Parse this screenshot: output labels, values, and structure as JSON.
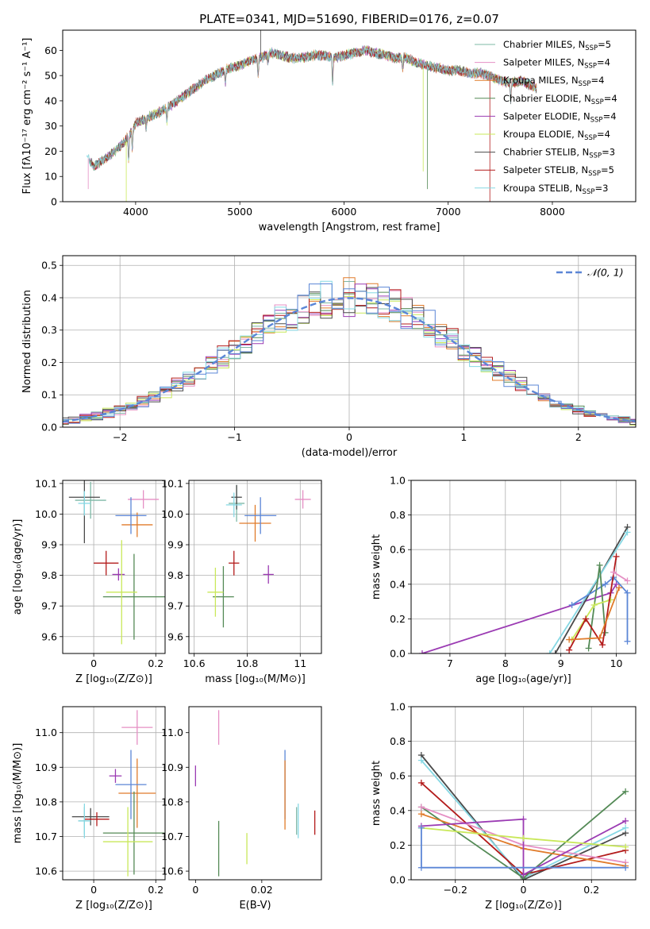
{
  "figure_title": "PLATE=0341, MJD=51690, FIBERID=0176, z=0.07",
  "colors": {
    "chabrier_miles": "#7eb8a6",
    "salpeter_miles": "#e58fc4",
    "kroupa_miles": "#e07b2a",
    "chabrier_elodie": "#548a56",
    "salpeter_elodie": "#9b3bb3",
    "kroupa_elodie": "#c9e85a",
    "chabrier_stelib": "#4a4a4a",
    "salpeter_stelib": "#b31b1b",
    "kroupa_stelib": "#86d8e4",
    "blue": "#5b86d6",
    "grid": "#b0b0b0"
  },
  "chart_data": [
    {
      "id": "spectrum",
      "type": "line",
      "title": "PLATE=0341, MJD=51690, FIBERID=0176, z=0.07",
      "xlabel": "wavelength [Angstrom, rest frame]",
      "ylabel": "Flux [fλ10⁻¹⁷ erg cm⁻² s⁻¹ A⁻¹]",
      "xlim": [
        3300,
        8800
      ],
      "ylim": [
        0,
        68
      ],
      "xticks": [
        4000,
        5000,
        6000,
        7000,
        8000
      ],
      "yticks": [
        0,
        10,
        20,
        30,
        40,
        50,
        60
      ],
      "grid": false,
      "legend_position": "top-right",
      "continuum": {
        "x": [
          3530,
          3600,
          3700,
          3800,
          3900,
          3960,
          4000,
          4100,
          4200,
          4300,
          4400,
          4500,
          4600,
          4700,
          4800,
          4900,
          5000,
          5100,
          5200,
          5300,
          5400,
          5500,
          5600,
          5700,
          5800,
          5900,
          6000,
          6100,
          6200,
          6300,
          6400,
          6500,
          6600,
          6700,
          6800,
          6900,
          7000,
          7100,
          7200,
          7300,
          7400,
          7500,
          7600,
          7700,
          7800,
          7850
        ],
        "y": [
          18,
          14,
          17,
          20,
          24,
          28,
          31,
          33,
          35,
          37,
          40,
          43,
          46,
          49,
          51,
          53,
          54,
          56,
          57,
          59,
          58,
          57,
          57,
          58,
          58,
          57,
          58,
          59,
          60,
          59,
          58,
          57,
          57,
          55,
          54,
          53,
          52,
          52,
          51,
          51,
          50,
          48,
          47,
          48,
          46,
          45
        ]
      },
      "series": [
        {
          "name": "Chabrier MILES, N",
          "n_ssp": "SSP",
          "n_value": "=5",
          "color_key": "chabrier_miles"
        },
        {
          "name": "Salpeter MILES, N",
          "n_ssp": "SSP",
          "n_value": "=4",
          "color_key": "salpeter_miles"
        },
        {
          "name": "Kroupa MILES, N",
          "n_ssp": "SSP",
          "n_value": "=4",
          "color_key": "kroupa_miles"
        },
        {
          "name": "Chabrier ELODIE, N",
          "n_ssp": "SSP",
          "n_value": "=4",
          "color_key": "chabrier_elodie"
        },
        {
          "name": "Salpeter ELODIE, N",
          "n_ssp": "SSP",
          "n_value": "=4",
          "color_key": "salpeter_elodie"
        },
        {
          "name": "Kroupa ELODIE, N",
          "n_ssp": "SSP",
          "n_value": "=4",
          "color_key": "kroupa_elodie"
        },
        {
          "name": "Chabrier STELIB, N",
          "n_ssp": "SSP",
          "n_value": "=3",
          "color_key": "chabrier_stelib"
        },
        {
          "name": "Salpeter STELIB, N",
          "n_ssp": "SSP",
          "n_value": "=5",
          "color_key": "salpeter_stelib"
        },
        {
          "name": "Kroupa STELIB, N",
          "n_ssp": "SSP",
          "n_value": "=3",
          "color_key": "kroupa_stelib"
        }
      ]
    },
    {
      "id": "residuals",
      "type": "line",
      "xlabel": "(data-model)/error",
      "ylabel": "Normed distribution",
      "xlim": [
        -2.5,
        2.5
      ],
      "ylim": [
        0,
        0.53
      ],
      "xticks": [
        -2,
        -1,
        0,
        1,
        2
      ],
      "yticks": [
        0.0,
        0.1,
        0.2,
        0.3,
        0.4,
        0.5
      ],
      "grid": true,
      "legend_position": "top-right",
      "legend_label": "𝒩(0, 1)",
      "gaussian": {
        "mu": 0,
        "sigma": 1
      }
    },
    {
      "id": "z_age",
      "type": "scatter",
      "xlabel": "Z [log₁₀(Z/Z⊙)]",
      "ylabel": "age  [log₁₀(age/yr)]",
      "xlim": [
        -0.1,
        0.23
      ],
      "ylim": [
        9.545,
        10.11
      ],
      "xticks": [
        0.0,
        0.2
      ],
      "yticks": [
        9.6,
        9.7,
        9.8,
        9.9,
        10.0,
        10.1
      ],
      "grid": true,
      "points": [
        {
          "x": -0.01,
          "y": 10.045,
          "ex": 0.05,
          "ey": 0.06,
          "color_key": "chabrier_miles"
        },
        {
          "x": 0.16,
          "y": 10.048,
          "ex": 0.05,
          "ey": 0.03,
          "color_key": "salpeter_miles"
        },
        {
          "x": 0.14,
          "y": 9.965,
          "ex": 0.05,
          "ey": 0.04,
          "color_key": "kroupa_miles"
        },
        {
          "x": 0.13,
          "y": 9.73,
          "ex": 0.1,
          "ey": 0.14,
          "color_key": "chabrier_elodie"
        },
        {
          "x": 0.08,
          "y": 9.803,
          "ex": 0.02,
          "ey": 0.02,
          "color_key": "salpeter_elodie"
        },
        {
          "x": 0.09,
          "y": 9.745,
          "ex": 0.05,
          "ey": 0.17,
          "color_key": "kroupa_elodie"
        },
        {
          "x": -0.03,
          "y": 10.055,
          "ex": 0.05,
          "ey": 0.15,
          "color_key": "chabrier_stelib"
        },
        {
          "x": 0.04,
          "y": 9.84,
          "ex": 0.04,
          "ey": 0.04,
          "color_key": "salpeter_stelib"
        },
        {
          "x": -0.03,
          "y": 10.035,
          "ex": 0.02,
          "ey": 0.04,
          "color_key": "kroupa_stelib"
        },
        {
          "x": 0.12,
          "y": 9.995,
          "ex": 0.05,
          "ey": 0.06,
          "color_key": "blue"
        }
      ]
    },
    {
      "id": "mass_age",
      "type": "scatter",
      "xlabel": "mass [log₁₀(M/M⊙)]",
      "ylabel": "",
      "xlim": [
        10.58,
        11.08
      ],
      "ylim": [
        9.545,
        10.11
      ],
      "xticks": [
        10.6,
        10.8,
        11.0
      ],
      "yticks": [
        9.6,
        9.7,
        9.8,
        9.9,
        10.0,
        10.1
      ],
      "grid": true,
      "points": [
        {
          "x": 10.76,
          "y": 10.035,
          "ex": 0.03,
          "ey": 0.06,
          "color_key": "chabrier_miles"
        },
        {
          "x": 11.01,
          "y": 10.048,
          "ex": 0.03,
          "ey": 0.03,
          "color_key": "salpeter_miles"
        },
        {
          "x": 10.83,
          "y": 9.97,
          "ex": 0.06,
          "ey": 0.06,
          "color_key": "kroupa_miles"
        },
        {
          "x": 10.71,
          "y": 9.73,
          "ex": 0.04,
          "ey": 0.1,
          "color_key": "chabrier_elodie"
        },
        {
          "x": 10.88,
          "y": 9.803,
          "ex": 0.02,
          "ey": 0.03,
          "color_key": "salpeter_elodie"
        },
        {
          "x": 10.68,
          "y": 9.745,
          "ex": 0.03,
          "ey": 0.08,
          "color_key": "kroupa_elodie"
        },
        {
          "x": 10.76,
          "y": 10.055,
          "ex": 0.02,
          "ey": 0.04,
          "color_key": "chabrier_stelib"
        },
        {
          "x": 10.75,
          "y": 9.84,
          "ex": 0.02,
          "ey": 0.04,
          "color_key": "salpeter_stelib"
        },
        {
          "x": 10.75,
          "y": 10.03,
          "ex": 0.03,
          "ey": 0.04,
          "color_key": "kroupa_stelib"
        },
        {
          "x": 10.85,
          "y": 9.995,
          "ex": 0.06,
          "ey": 0.06,
          "color_key": "blue"
        }
      ]
    },
    {
      "id": "age_weight",
      "type": "line",
      "xlabel": "age  [log₁₀(age/yr)]",
      "ylabel": "mass weight",
      "xlim": [
        6.3,
        10.35
      ],
      "ylim": [
        0,
        1.0
      ],
      "xticks": [
        7,
        8,
        9,
        10
      ],
      "yticks": [
        0.0,
        0.2,
        0.4,
        0.6,
        0.8,
        1.0
      ],
      "grid": true,
      "series": [
        {
          "color_key": "salpeter_elodie",
          "x": [
            6.5,
            9.9,
            10.0
          ],
          "y": [
            0.0,
            0.35,
            0.4
          ]
        },
        {
          "color_key": "chabrier_stelib",
          "x": [
            8.9,
            10.2
          ],
          "y": [
            0.0,
            0.73
          ]
        },
        {
          "color_key": "kroupa_stelib",
          "x": [
            8.8,
            10.2
          ],
          "y": [
            0.0,
            0.7
          ]
        },
        {
          "color_key": "blue",
          "x": [
            9.2,
            9.8,
            9.95,
            10.2,
            10.2
          ],
          "y": [
            0.28,
            0.4,
            0.44,
            0.35,
            0.07
          ]
        },
        {
          "color_key": "chabrier_elodie",
          "x": [
            9.5,
            9.7,
            9.8
          ],
          "y": [
            0.03,
            0.51,
            0.12
          ]
        },
        {
          "color_key": "kroupa_elodie",
          "x": [
            9.2,
            9.6,
            9.9
          ],
          "y": [
            0.08,
            0.28,
            0.31
          ]
        },
        {
          "color_key": "salpeter_stelib",
          "x": [
            9.15,
            9.45,
            9.75,
            10.0
          ],
          "y": [
            0.02,
            0.2,
            0.05,
            0.56
          ]
        },
        {
          "color_key": "kroupa_miles",
          "x": [
            9.15,
            9.7,
            10.05
          ],
          "y": [
            0.08,
            0.09,
            0.38
          ]
        },
        {
          "color_key": "salpeter_miles",
          "x": [
            9.95,
            10.2
          ],
          "y": [
            0.47,
            0.42
          ]
        }
      ]
    },
    {
      "id": "z_mass",
      "type": "scatter",
      "xlabel": "Z [log₁₀(Z/Z⊙)]",
      "ylabel": "mass [log₁₀(M/M⊙)]",
      "xlim": [
        -0.1,
        0.23
      ],
      "ylim": [
        10.575,
        11.075
      ],
      "xticks": [
        0.0,
        0.2
      ],
      "yticks": [
        10.6,
        10.7,
        10.8,
        10.9,
        11.0
      ],
      "grid": true,
      "points": [
        {
          "x": -0.03,
          "y": 10.745,
          "ex": 0.02,
          "ey": 0.04,
          "color_key": "chabrier_miles"
        },
        {
          "x": 0.14,
          "y": 11.015,
          "ex": 0.05,
          "ey": 0.05,
          "color_key": "salpeter_miles"
        },
        {
          "x": 0.14,
          "y": 10.825,
          "ex": 0.06,
          "ey": 0.1,
          "color_key": "kroupa_miles"
        },
        {
          "x": 0.13,
          "y": 10.71,
          "ex": 0.1,
          "ey": 0.12,
          "color_key": "chabrier_elodie"
        },
        {
          "x": 0.07,
          "y": 10.875,
          "ex": 0.02,
          "ey": 0.02,
          "color_key": "salpeter_elodie"
        },
        {
          "x": 0.11,
          "y": 10.685,
          "ex": 0.08,
          "ey": 0.1,
          "color_key": "kroupa_elodie"
        },
        {
          "x": -0.01,
          "y": 10.757,
          "ex": 0.06,
          "ey": 0.025,
          "color_key": "chabrier_stelib"
        },
        {
          "x": 0.01,
          "y": 10.75,
          "ex": 0.04,
          "ey": 0.02,
          "color_key": "salpeter_stelib"
        },
        {
          "x": -0.03,
          "y": 10.745,
          "ex": 0.02,
          "ey": 0.05,
          "color_key": "kroupa_stelib"
        },
        {
          "x": 0.12,
          "y": 10.85,
          "ex": 0.05,
          "ey": 0.1,
          "color_key": "blue"
        }
      ]
    },
    {
      "id": "ebv_mass",
      "type": "scatter",
      "xlabel": "E(B-V)",
      "ylabel": "",
      "xlim": [
        -0.002,
        0.038
      ],
      "ylim": [
        10.575,
        11.075
      ],
      "xticks": [
        0.0,
        0.02
      ],
      "yticks": [
        10.6,
        10.7,
        10.8,
        10.9,
        11.0
      ],
      "grid": false,
      "points": [
        {
          "x": 0.0,
          "y": 10.875,
          "ey": 0.03,
          "color_key": "salpeter_elodie"
        },
        {
          "x": 0.007,
          "y": 11.015,
          "ey": 0.05,
          "color_key": "salpeter_miles"
        },
        {
          "x": 0.007,
          "y": 10.665,
          "ey": 0.08,
          "color_key": "chabrier_elodie"
        },
        {
          "x": 0.0155,
          "y": 10.665,
          "ey": 0.045,
          "color_key": "kroupa_elodie"
        },
        {
          "x": 0.027,
          "y": 10.85,
          "ey": 0.1,
          "color_key": "blue"
        },
        {
          "x": 0.027,
          "y": 10.82,
          "ey": 0.1,
          "color_key": "kroupa_miles"
        },
        {
          "x": 0.031,
          "y": 10.745,
          "ey": 0.05,
          "color_key": "kroupa_stelib"
        },
        {
          "x": 0.0305,
          "y": 10.745,
          "ey": 0.04,
          "color_key": "chabrier_miles"
        },
        {
          "x": 0.036,
          "y": 10.74,
          "ey": 0.035,
          "color_key": "salpeter_stelib"
        }
      ]
    },
    {
      "id": "z_weight",
      "type": "line",
      "xlabel": "Z [log₁₀(Z/Z⊙)]",
      "ylabel": "mass weight",
      "xlim": [
        -0.33,
        0.33
      ],
      "ylim": [
        0,
        1.0
      ],
      "xticks": [
        -0.2,
        0.0,
        0.2
      ],
      "yticks": [
        0.0,
        0.2,
        0.4,
        0.6,
        0.8,
        1.0
      ],
      "grid": true,
      "series": [
        {
          "color_key": "chabrier_stelib",
          "x": [
            -0.3,
            0.0,
            0.3
          ],
          "y": [
            0.72,
            0.0,
            0.27
          ]
        },
        {
          "color_key": "kroupa_stelib",
          "x": [
            -0.3,
            0.0,
            0.3
          ],
          "y": [
            0.69,
            0.01,
            0.3
          ]
        },
        {
          "color_key": "salpeter_stelib",
          "x": [
            -0.3,
            0.0,
            0.3
          ],
          "y": [
            0.56,
            0.03,
            0.17
          ]
        },
        {
          "color_key": "chabrier_elodie",
          "x": [
            -0.3,
            0.0,
            0.3
          ],
          "y": [
            0.42,
            0.01,
            0.51
          ]
        },
        {
          "color_key": "salpeter_miles",
          "x": [
            -0.3,
            0.0,
            0.3
          ],
          "y": [
            0.42,
            0.2,
            0.1
          ]
        },
        {
          "color_key": "kroupa_miles",
          "x": [
            -0.3,
            0.0,
            0.3
          ],
          "y": [
            0.38,
            0.18,
            0.08
          ]
        },
        {
          "color_key": "salpeter_elodie",
          "x": [
            -0.3,
            0.0,
            0.0,
            0.3
          ],
          "y": [
            0.31,
            0.35,
            0.03,
            0.34
          ]
        },
        {
          "color_key": "kroupa_elodie",
          "x": [
            -0.3,
            0.0,
            0.3
          ],
          "y": [
            0.3,
            0.24,
            0.19
          ]
        },
        {
          "color_key": "blue",
          "x": [
            -0.3,
            -0.3,
            0.3
          ],
          "y": [
            0.3,
            0.07,
            0.07
          ]
        }
      ]
    }
  ]
}
